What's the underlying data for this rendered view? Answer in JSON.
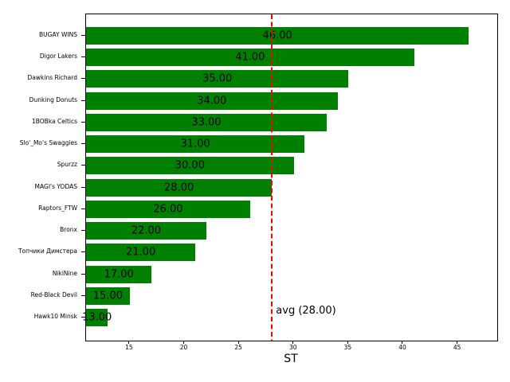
{
  "chart_data": {
    "type": "bar",
    "orientation": "horizontal",
    "title": "",
    "xlabel": "ST",
    "ylabel": "",
    "categories": [
      "BUGAY WINS",
      "Digor Lakers",
      "Dawkins Richard",
      "Dunking Donuts",
      "1BOBka Celtics",
      "Slo'_Mo's Swaggies",
      "Spurzz",
      "MAGI's YODAS",
      "Raptors_FTW",
      "Bronx",
      "Топчики Димстера",
      "NikiNine",
      "Red-Black Devil",
      "Hawk10 Minsk"
    ],
    "values": [
      46,
      41,
      35,
      34,
      33,
      31,
      30,
      28,
      26,
      22,
      21,
      17,
      15,
      13
    ],
    "value_labels": [
      "46.00",
      "41.00",
      "35.00",
      "34.00",
      "33.00",
      "31.00",
      "30.00",
      "28.00",
      "26.00",
      "22.00",
      "21.00",
      "17.00",
      "15.00",
      "13.00"
    ],
    "xticks": [
      15,
      20,
      25,
      30,
      35,
      40,
      45
    ],
    "xtick_labels": [
      "15",
      "20",
      "25",
      "30",
      "35",
      "40",
      "45"
    ],
    "xlim": [
      11,
      48.6
    ],
    "grid": false,
    "legend": false,
    "bar_color": "#008000",
    "text_color": "#000000",
    "background_color": "#ffffff",
    "avg_line": {
      "value": 28,
      "label": "avg (28.00)",
      "color": "#ff0000",
      "style": "dashed",
      "width": 2
    }
  }
}
